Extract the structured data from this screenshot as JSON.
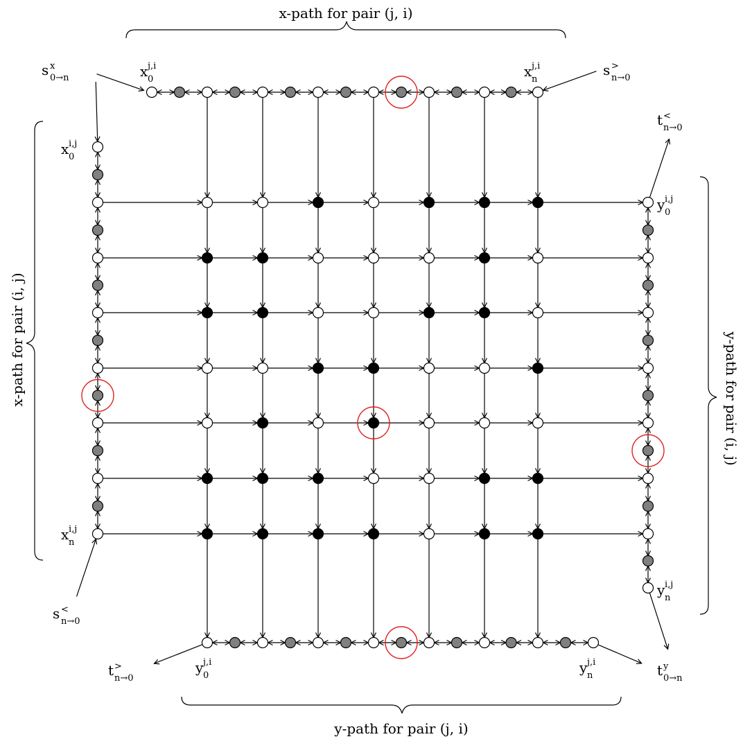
{
  "brace_labels": {
    "top": "x-path for pair (j, i)",
    "bottom": "y-path for pair (j, i)",
    "left": "x-path for pair (i, j)",
    "right": "y-path for pair (i, j)"
  },
  "terminal_labels": {
    "s_x_0_to_n": "s^x_{0→n}",
    "s_gt_n_to_0": "s^>_{n→0}",
    "s_lt_n_to_0": "s^<_{n→0}",
    "t_lt_n_to_0": "t^<_{n→0}",
    "t_gt_n_to_0": "t^>_{n→0}",
    "t_y_0_to_n": "t^y_{0→n}"
  },
  "path_end_labels": {
    "x0_ji": "x^{j,i}_0",
    "xn_ji": "x^{j,i}_n",
    "x0_ij": "x^{i,j}_0",
    "xn_ij": "x^{i,j}_n",
    "y0_ij": "y^{i,j}_0",
    "yn_ij": "y^{i,j}_n",
    "y0_ji": "y^{j,i}_0",
    "yn_ji": "y^{j,i}_n"
  },
  "grid": {
    "rows": 7,
    "cols": 7,
    "filled": [
      [
        false,
        false,
        true,
        false,
        true,
        true,
        true
      ],
      [
        true,
        true,
        false,
        false,
        false,
        true,
        false
      ],
      [
        true,
        true,
        false,
        false,
        true,
        true,
        false
      ],
      [
        false,
        false,
        true,
        true,
        false,
        false,
        true
      ],
      [
        false,
        true,
        false,
        true,
        false,
        false,
        false
      ],
      [
        true,
        true,
        true,
        false,
        false,
        true,
        true
      ],
      [
        true,
        true,
        true,
        true,
        false,
        true,
        true
      ]
    ]
  },
  "highlights": [
    {
      "path": "top",
      "gray_index": 4
    },
    {
      "path": "left",
      "gray_index": 4
    },
    {
      "path": "right",
      "gray_index": 4
    },
    {
      "path": "bottom",
      "gray_index": 3
    },
    {
      "path": "grid",
      "row": 4,
      "col": 3
    }
  ],
  "colors": {
    "hollow_node": "#ffffff",
    "gray_node": "#808080",
    "filled_node": "#000000",
    "highlight": "#e02020",
    "edge": "#000000"
  }
}
